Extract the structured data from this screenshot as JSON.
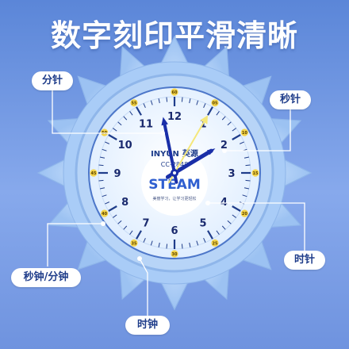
{
  "headline": "数字刻印平滑清晰",
  "callouts": {
    "minute_hand": "分针",
    "second_hand": "秒针",
    "second_minute": "秒钟/分钟",
    "hour_hand": "时针",
    "clock": "时钟"
  },
  "clock": {
    "hours": [
      "12",
      "1",
      "2",
      "3",
      "4",
      "5",
      "6",
      "7",
      "8",
      "9",
      "10",
      "11"
    ],
    "minutes": [
      "60",
      "05",
      "10",
      "15",
      "20",
      "25",
      "30",
      "35",
      "40",
      "45",
      "50",
      "55"
    ],
    "brand": "INYUN",
    "brand_cn": "英源",
    "model": "CC-2848",
    "center_logo": "STEAM",
    "center_caption": "美丽学习，让学习更轻松",
    "time_shown": "1:58:05"
  },
  "colors": {
    "background": "#6f93df",
    "petals": "#a9ccf7",
    "face": "#e8f3ff",
    "hands": "#1a2fa8",
    "second_hand": "#f5e77a"
  }
}
